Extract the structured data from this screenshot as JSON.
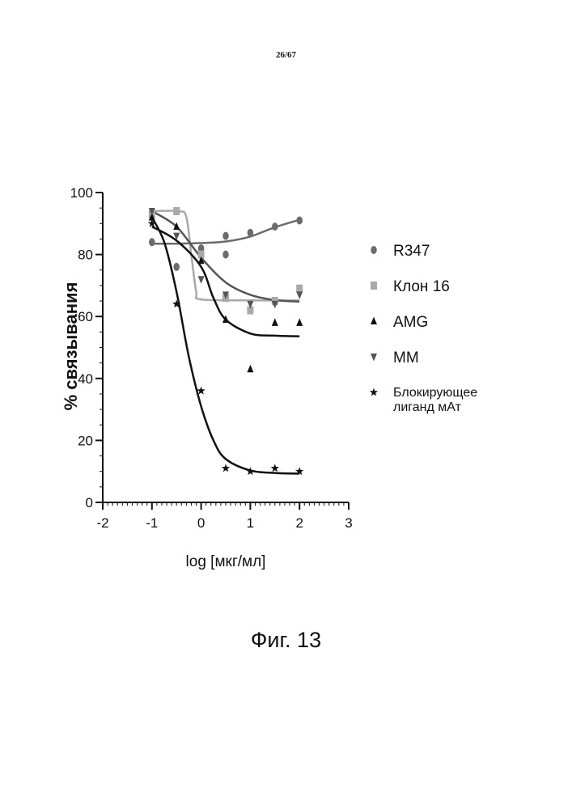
{
  "page": {
    "number": "26/67",
    "caption": "Фиг. 13"
  },
  "chart_data": {
    "type": "scatter",
    "ylabel": "% связывания",
    "xlabel": "log [мкг/мл]",
    "xlim": [
      -2,
      3
    ],
    "ylim": [
      0,
      100
    ],
    "xticks": [
      "-2",
      "-1",
      "0",
      "1",
      "2",
      "3"
    ],
    "yticks": [
      "0",
      "20",
      "40",
      "60",
      "80",
      "100"
    ],
    "legend_position": "right",
    "series": [
      {
        "name": "R347",
        "marker": "circle",
        "color": "#6b6b6b",
        "points": [
          {
            "x": -1.0,
            "y": 84
          },
          {
            "x": -0.5,
            "y": 76
          },
          {
            "x": 0.0,
            "y": 82
          },
          {
            "x": 0.5,
            "y": 80
          },
          {
            "x": 0.5,
            "y": 86
          },
          {
            "x": 1.0,
            "y": 87
          },
          {
            "x": 1.5,
            "y": 89
          },
          {
            "x": 2.0,
            "y": 91
          }
        ],
        "curve": [
          {
            "x": -1.0,
            "y": 83.5
          },
          {
            "x": -0.5,
            "y": 83.5
          },
          {
            "x": 0.0,
            "y": 83.7
          },
          {
            "x": 0.5,
            "y": 84.2
          },
          {
            "x": 1.0,
            "y": 85.8
          },
          {
            "x": 1.5,
            "y": 88.8
          },
          {
            "x": 2.0,
            "y": 91.2
          }
        ]
      },
      {
        "name": "Клон 16",
        "marker": "square",
        "color": "#a9a9a9",
        "points": [
          {
            "x": -1.0,
            "y": 93
          },
          {
            "x": -0.5,
            "y": 94
          },
          {
            "x": 0.0,
            "y": 80
          },
          {
            "x": 0.5,
            "y": 66
          },
          {
            "x": 1.0,
            "y": 62
          },
          {
            "x": 1.5,
            "y": 65
          },
          {
            "x": 2.0,
            "y": 69
          }
        ],
        "curve": [
          {
            "x": -1.0,
            "y": 94
          },
          {
            "x": -0.45,
            "y": 94
          },
          {
            "x": -0.3,
            "y": 92
          },
          {
            "x": -0.2,
            "y": 80
          },
          {
            "x": -0.1,
            "y": 68
          },
          {
            "x": 0.0,
            "y": 65.5
          },
          {
            "x": 1.0,
            "y": 65.2
          },
          {
            "x": 2.0,
            "y": 65.2
          }
        ]
      },
      {
        "name": "AMG",
        "marker": "triangle-up",
        "color": "#111111",
        "points": [
          {
            "x": -1.0,
            "y": 92
          },
          {
            "x": -0.5,
            "y": 89
          },
          {
            "x": 0.0,
            "y": 78
          },
          {
            "x": 0.5,
            "y": 59
          },
          {
            "x": 1.0,
            "y": 43
          },
          {
            "x": 1.5,
            "y": 58
          },
          {
            "x": 2.0,
            "y": 58
          }
        ],
        "curve": [
          {
            "x": -1.0,
            "y": 89
          },
          {
            "x": -0.5,
            "y": 84.5
          },
          {
            "x": 0.0,
            "y": 76
          },
          {
            "x": 0.25,
            "y": 66
          },
          {
            "x": 0.5,
            "y": 59
          },
          {
            "x": 1.0,
            "y": 54.5
          },
          {
            "x": 1.5,
            "y": 53.8
          },
          {
            "x": 2.0,
            "y": 53.6
          }
        ]
      },
      {
        "name": "MM",
        "marker": "triangle-down",
        "color": "#555555",
        "points": [
          {
            "x": -1.0,
            "y": 94
          },
          {
            "x": -0.5,
            "y": 86
          },
          {
            "x": 0.0,
            "y": 72
          },
          {
            "x": 0.5,
            "y": 67
          },
          {
            "x": 1.0,
            "y": 64
          },
          {
            "x": 1.5,
            "y": 64
          },
          {
            "x": 2.0,
            "y": 67
          }
        ],
        "curve": [
          {
            "x": -1.0,
            "y": 94
          },
          {
            "x": -0.5,
            "y": 89
          },
          {
            "x": 0.0,
            "y": 79
          },
          {
            "x": 0.5,
            "y": 71
          },
          {
            "x": 1.0,
            "y": 67
          },
          {
            "x": 1.5,
            "y": 65.3
          },
          {
            "x": 2.0,
            "y": 64.8
          }
        ]
      },
      {
        "name": "Блокирующее лиганд мАт",
        "marker": "star",
        "color": "#111111",
        "points": [
          {
            "x": -1.0,
            "y": 90
          },
          {
            "x": -0.5,
            "y": 64
          },
          {
            "x": 0.0,
            "y": 36
          },
          {
            "x": 0.5,
            "y": 11
          },
          {
            "x": 1.0,
            "y": 10
          },
          {
            "x": 1.5,
            "y": 11
          },
          {
            "x": 2.0,
            "y": 10
          }
        ],
        "curve": [
          {
            "x": -1.0,
            "y": 92
          },
          {
            "x": -0.75,
            "y": 84
          },
          {
            "x": -0.5,
            "y": 68
          },
          {
            "x": -0.25,
            "y": 47
          },
          {
            "x": 0.0,
            "y": 31
          },
          {
            "x": 0.25,
            "y": 20
          },
          {
            "x": 0.5,
            "y": 14
          },
          {
            "x": 1.0,
            "y": 10.3
          },
          {
            "x": 1.5,
            "y": 9.5
          },
          {
            "x": 2.0,
            "y": 9.3
          }
        ]
      }
    ],
    "legend_lines": [
      [
        "R347"
      ],
      [
        "Клон 16"
      ],
      [
        "AMG"
      ],
      [
        "MM"
      ],
      [
        "Блокирующее",
        "лиганд мАт"
      ]
    ]
  }
}
